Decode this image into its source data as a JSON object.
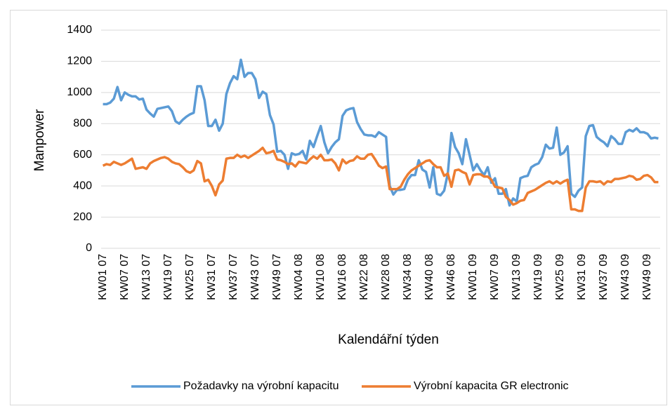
{
  "chart_data": {
    "type": "line",
    "y_label": "Manpower",
    "x_label": "Kalendářní týden",
    "ylim": [
      0,
      1400
    ],
    "yticks": [
      0,
      200,
      400,
      600,
      800,
      1000,
      1200,
      1400
    ],
    "grid": true,
    "legend": "bottom",
    "categories": [
      "KW01 07",
      null,
      null,
      null,
      null,
      null,
      "KW07 07",
      null,
      null,
      null,
      null,
      null,
      "KW13 07",
      null,
      null,
      null,
      null,
      null,
      "KW19 07",
      null,
      null,
      null,
      null,
      null,
      "KW25 07",
      null,
      null,
      null,
      null,
      null,
      "KW31 07",
      null,
      null,
      null,
      null,
      null,
      "KW37 07",
      null,
      null,
      null,
      null,
      null,
      "KW43 07",
      null,
      null,
      null,
      null,
      null,
      "KW49 07",
      null,
      null,
      null,
      null,
      null,
      "KW04 08",
      null,
      null,
      null,
      null,
      null,
      "KW10 08",
      null,
      null,
      null,
      null,
      null,
      "KW16 08",
      null,
      null,
      null,
      null,
      null,
      "KW22 08",
      null,
      null,
      null,
      null,
      null,
      "KW28 08",
      null,
      null,
      null,
      null,
      null,
      "KW34 08",
      null,
      null,
      null,
      null,
      null,
      "KW40 08",
      null,
      null,
      null,
      null,
      null,
      "KW46 08",
      null,
      null,
      null,
      null,
      null,
      "KW01 09",
      null,
      null,
      null,
      null,
      null,
      "KW07 09",
      null,
      null,
      null,
      null,
      null,
      "KW13 09",
      null,
      null,
      null,
      null,
      null,
      "KW19 09",
      null,
      null,
      null,
      null,
      null,
      "KW25 09",
      null,
      null,
      null,
      null,
      null,
      "KW31 09",
      null,
      null,
      null,
      null,
      null,
      "KW37 09",
      null,
      null,
      null,
      null,
      null,
      "KW43 09",
      null,
      null,
      null,
      null,
      null,
      "KW49 09",
      null,
      null,
      null
    ],
    "series": [
      {
        "name": "Požadavky na výrobní kapacitu",
        "color": "#5b9bd5",
        "values": [
          925,
          925,
          935,
          960,
          1035,
          950,
          1000,
          985,
          975,
          975,
          955,
          960,
          890,
          865,
          845,
          895,
          900,
          905,
          910,
          880,
          815,
          800,
          825,
          845,
          860,
          870,
          1040,
          1040,
          950,
          785,
          785,
          825,
          755,
          800,
          990,
          1060,
          1105,
          1085,
          1210,
          1100,
          1125,
          1125,
          1085,
          965,
          1005,
          990,
          855,
          795,
          620,
          625,
          600,
          510,
          610,
          600,
          605,
          625,
          570,
          690,
          650,
          720,
          785,
          680,
          610,
          650,
          680,
          700,
          850,
          885,
          895,
          900,
          810,
          765,
          730,
          725,
          725,
          715,
          745,
          730,
          715,
          400,
          345,
          375,
          375,
          380,
          440,
          470,
          470,
          565,
          505,
          490,
          390,
          520,
          350,
          340,
          370,
          480,
          740,
          650,
          610,
          540,
          700,
          600,
          500,
          540,
          500,
          470,
          520,
          420,
          450,
          350,
          350,
          380,
          275,
          320,
          300,
          450,
          460,
          465,
          520,
          535,
          545,
          585,
          665,
          640,
          645,
          775,
          600,
          615,
          655,
          350,
          330,
          370,
          390,
          720,
          785,
          790,
          715,
          695,
          680,
          655,
          720,
          700,
          670,
          670,
          745,
          760,
          750,
          770,
          745,
          745,
          735,
          705,
          710,
          705
        ]
      },
      {
        "name": "Výrobní kapacita GR electronic",
        "color": "#ed7d31",
        "values": [
          530,
          540,
          535,
          555,
          545,
          535,
          545,
          560,
          575,
          510,
          515,
          520,
          510,
          545,
          560,
          570,
          580,
          585,
          575,
          555,
          545,
          540,
          520,
          495,
          485,
          500,
          560,
          545,
          430,
          440,
          400,
          340,
          410,
          435,
          575,
          580,
          580,
          600,
          585,
          595,
          580,
          595,
          610,
          625,
          645,
          610,
          615,
          625,
          570,
          565,
          555,
          540,
          545,
          525,
          555,
          550,
          545,
          570,
          590,
          575,
          600,
          565,
          565,
          570,
          545,
          500,
          570,
          545,
          560,
          565,
          590,
          575,
          575,
          600,
          605,
          570,
          530,
          515,
          525,
          380,
          380,
          380,
          395,
          440,
          475,
          500,
          515,
          530,
          545,
          560,
          565,
          540,
          520,
          520,
          465,
          480,
          395,
          500,
          505,
          490,
          480,
          410,
          470,
          475,
          475,
          460,
          460,
          440,
          395,
          390,
          385,
          330,
          310,
          280,
          290,
          305,
          310,
          355,
          365,
          375,
          390,
          405,
          420,
          430,
          415,
          430,
          415,
          430,
          440,
          250,
          250,
          240,
          240,
          390,
          430,
          430,
          425,
          430,
          410,
          430,
          425,
          445,
          445,
          450,
          455,
          465,
          460,
          440,
          445,
          465,
          470,
          455,
          425,
          425
        ]
      }
    ]
  }
}
